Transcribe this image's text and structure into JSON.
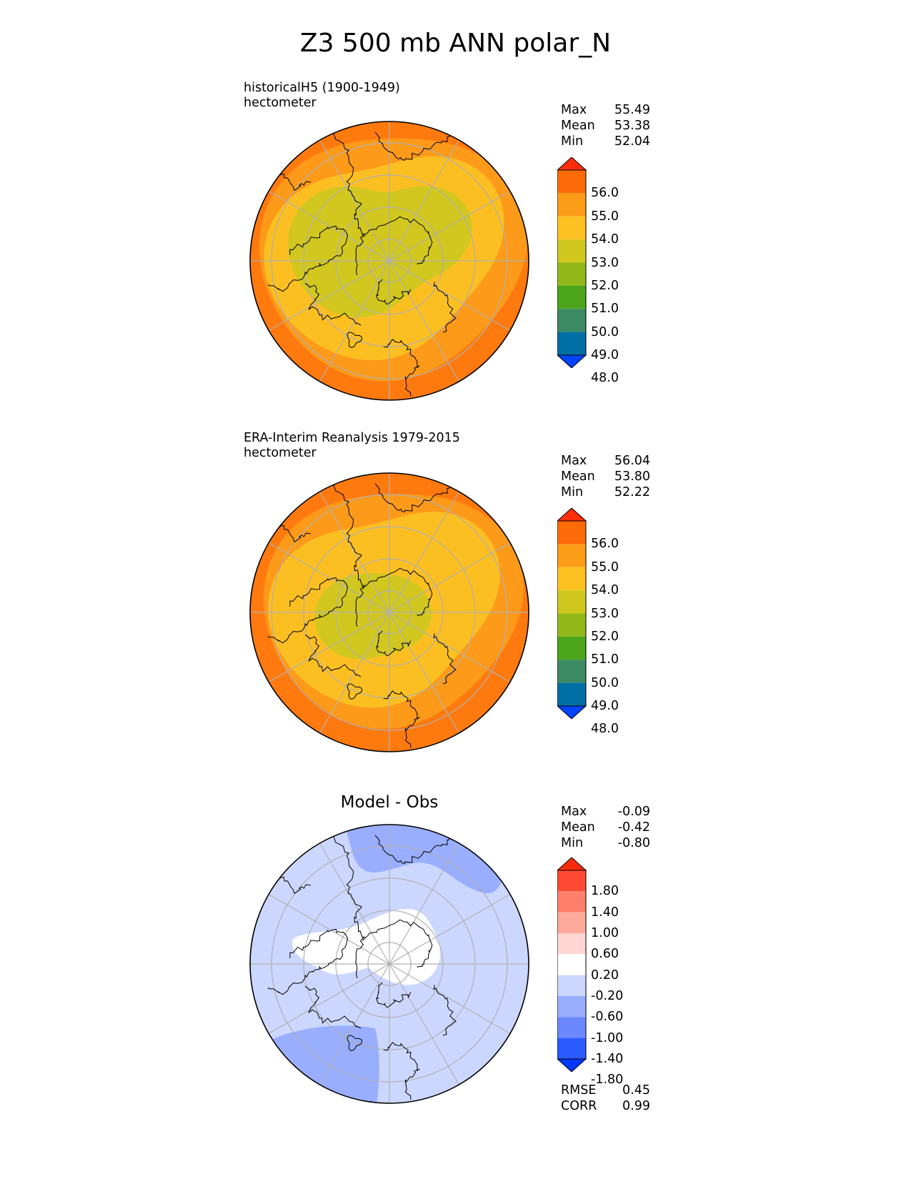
{
  "title": "Z3 500 mb ANN polar_N",
  "colors": {
    "abs": [
      "#0044ff",
      "#006fa6",
      "#3b8a63",
      "#4aa51a",
      "#93b81a",
      "#d0c81e",
      "#fec122",
      "#fd9d17",
      "#fd6a08",
      "#ff2d0b"
    ],
    "abs_band_colors": [
      "#ff7a0e",
      "#fd9a19",
      "#fcbf22",
      "#d1c71f"
    ],
    "diff": [
      "#0038ff",
      "#2a5bff",
      "#6b88ff",
      "#9aaeff",
      "#ccd7ff",
      "#ffffff",
      "#ffd6d2",
      "#ffa99d",
      "#ff7f6a",
      "#ff4a33",
      "#ff2a0a"
    ],
    "coast": "#000000",
    "grid": "#b0b0b0"
  },
  "panels": {
    "test": {
      "title": "historicalH5 (1900-1949)",
      "units": "hectometer",
      "stats": {
        "max_label": "Max",
        "max": "55.49",
        "mean_label": "Mean",
        "mean": "53.38",
        "min_label": "Min",
        "min": "52.04"
      },
      "levels": [
        "56.0",
        "55.0",
        "54.0",
        "53.0",
        "52.0",
        "51.0",
        "50.0",
        "49.0",
        "48.0"
      ]
    },
    "ref": {
      "title": "ERA-Interim Reanalysis 1979-2015",
      "units": "hectometer",
      "stats": {
        "max_label": "Max",
        "max": "56.04",
        "mean_label": "Mean",
        "mean": "53.80",
        "min_label": "Min",
        "min": "52.22"
      },
      "levels": [
        "56.0",
        "55.0",
        "54.0",
        "53.0",
        "52.0",
        "51.0",
        "50.0",
        "49.0",
        "48.0"
      ]
    },
    "diff": {
      "title": "Model - Obs",
      "stats": {
        "max_label": "Max",
        "max": "-0.09",
        "mean_label": "Mean",
        "mean": "-0.42",
        "min_label": "Min",
        "min": "-0.80"
      },
      "levels": [
        "1.80",
        "1.40",
        "1.00",
        "0.60",
        "0.20",
        "-0.20",
        "-0.60",
        "-1.00",
        "-1.40",
        "-1.80"
      ],
      "metrics": {
        "rmse_label": "RMSE",
        "rmse": "0.45",
        "corr_label": "CORR",
        "corr": "0.99"
      }
    }
  },
  "map_data": {
    "projection": "north polar stereographic",
    "field": "500 mb geopotential height (hectometer)",
    "test_bands_hm": [
      "55-56",
      "54-55",
      "53-54",
      "52-53"
    ],
    "ref_bands_hm": [
      "55-56",
      "54-55",
      "53-54",
      "52-53"
    ],
    "diff_bands": [
      "-0.60 to -0.20",
      "-0.20 to 0.20",
      "-1.00 to -0.60"
    ]
  }
}
